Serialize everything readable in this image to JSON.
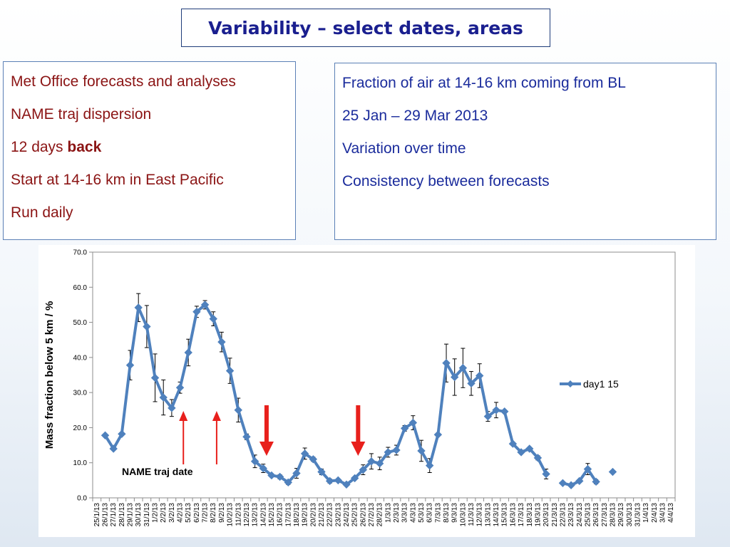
{
  "title": "Variability – select dates, areas",
  "left_panel": {
    "lines": [
      "Met Office forecasts and analyses",
      "NAME traj dispersion",
      "12 days ",
      "Start at 14-16 km in East Pacific",
      "Run daily"
    ],
    "bold_word": "back"
  },
  "right_panel": {
    "lines": [
      "Fraction of air at 14-16 km coming from BL",
      "25 Jan – 29 Mar 2013",
      "Variation over time",
      "Consistency between forecasts"
    ]
  },
  "colors": {
    "title": "#1a1f8f",
    "left_text": "#8b1414",
    "right_text": "#1b2c9c",
    "series": "#4f81bd",
    "thin_arrow": "#e8201c",
    "thick_arrow": "#e8201c"
  },
  "chart_data": {
    "type": "line",
    "ylabel": "Mass fraction below 5 km / %",
    "xlabel": "",
    "ylim": [
      0,
      70
    ],
    "yticks": [
      "0.0",
      "10.0",
      "20.0",
      "30.0",
      "40.0",
      "50.0",
      "60.0",
      "70.0"
    ],
    "categories": [
      "25/1/13",
      "26/1/13",
      "27/1/13",
      "28/1/13",
      "29/1/13",
      "30/1/13",
      "31/1/13",
      "1/2/13",
      "2/2/13",
      "3/2/13",
      "4/2/13",
      "5/2/13",
      "6/2/13",
      "7/2/13",
      "8/2/13",
      "9/2/13",
      "10/2/13",
      "11/2/13",
      "12/2/13",
      "13/2/13",
      "14/2/13",
      "15/2/13",
      "16/2/13",
      "17/2/13",
      "18/2/13",
      "19/2/13",
      "20/2/13",
      "21/2/13",
      "22/2/13",
      "23/2/13",
      "24/2/13",
      "25/2/13",
      "26/2/13",
      "27/2/13",
      "28/2/13",
      "1/3/13",
      "2/3/13",
      "3/3/13",
      "4/3/13",
      "5/3/13",
      "6/3/13",
      "7/3/13",
      "8/3/13",
      "9/3/13",
      "10/3/13",
      "11/3/13",
      "12/3/13",
      "13/3/13",
      "14/3/13",
      "15/3/13",
      "16/3/13",
      "17/3/13",
      "18/3/13",
      "19/3/13",
      "20/3/13",
      "21/3/13",
      "22/3/13",
      "23/3/13",
      "24/3/13",
      "25/3/13",
      "26/3/13",
      "27/3/13",
      "28/3/13",
      "29/3/13",
      "30/3/13",
      "31/3/13",
      "1/4/13",
      "2/4/13",
      "3/4/13",
      "4/4/13"
    ],
    "tick_labels": [
      "25/1/13",
      "26/1/13",
      "27/1/13",
      "28/1/13",
      "29/1/13",
      "30/1/13",
      "31/1/13",
      "1/2/13",
      "2/2/13",
      "3/2/13",
      "4/2/13",
      "5/2/13",
      "6/2/13",
      "7/2/13",
      "8/2/13",
      "9/2/13",
      "10/2/13",
      "11/2/13",
      "12/2/13",
      "13/2/13",
      "14/2/13",
      "15/2/13",
      "16/2/13",
      "17/2/13",
      "18/2/13",
      "19/2/13",
      "20/2/13",
      "21/2/13",
      "22/2/13",
      "23/2/13",
      "24/2/13",
      "25/2/13",
      "26/2/13",
      "27/2/13",
      "28/2/13",
      "1/3/13",
      "2/3/13",
      "3/3/13",
      "4/3/13",
      "5/3/13",
      "6/3/13",
      "7/3/13",
      "8/3/13",
      "9/3/13",
      "10/3/13",
      "11/3/13",
      "12/3/13",
      "13/3/13",
      "14/3/13",
      "15/3/13",
      "16/3/13",
      "17/3/13",
      "18/3/13",
      "19/3/13",
      "20/3/13",
      "21/3/13",
      "22/3/13",
      "23/3/13",
      "24/3/13",
      "25/3/13",
      "26/3/13",
      "27/3/13",
      "28/3/13",
      "29/3/13",
      "30/3/13",
      "31/3/13",
      "1/4/13",
      "2/4/13",
      "3/4/13",
      "4/4/13"
    ],
    "series": [
      {
        "name": "day1 15",
        "values": [
          null,
          17.8,
          14.0,
          18.2,
          37.8,
          54.2,
          48.8,
          34.2,
          28.6,
          25.6,
          31.4,
          41.4,
          53.0,
          55.0,
          51.0,
          44.4,
          36.2,
          25.0,
          17.4,
          10.4,
          8.4,
          6.4,
          6.0,
          4.4,
          7.0,
          12.6,
          11.0,
          7.4,
          4.8,
          5.0,
          3.8,
          5.6,
          8.0,
          10.4,
          9.8,
          13.0,
          13.6,
          19.8,
          21.4,
          13.4,
          9.2,
          18.0,
          38.4,
          34.4,
          37.0,
          32.6,
          34.8,
          23.2,
          25.0,
          24.6,
          15.4,
          13.0,
          14.0,
          11.4,
          6.8,
          null,
          4.2,
          3.6,
          4.8,
          8.2,
          4.6,
          null,
          7.4,
          null,
          null,
          null,
          null,
          null,
          null,
          null
        ],
        "err": [
          null,
          0,
          0,
          0,
          4.2,
          4.0,
          6.0,
          6.8,
          5.0,
          2.4,
          1.6,
          3.8,
          1.6,
          1.2,
          2.0,
          2.8,
          3.6,
          3.4,
          0.8,
          1.8,
          1.2,
          0.4,
          0.6,
          0.6,
          1.4,
          1.6,
          0.6,
          0.8,
          0.6,
          0.4,
          0.4,
          0.4,
          1.4,
          2.2,
          1.8,
          1.4,
          1.4,
          0.8,
          2.0,
          3.0,
          2.0,
          0.4,
          5.4,
          5.2,
          5.6,
          3.4,
          3.4,
          1.4,
          2.2,
          0.4,
          0.4,
          0.4,
          0.4,
          0.6,
          1.4,
          null,
          0.4,
          0.4,
          0.4,
          1.6,
          0.6,
          null,
          0,
          null,
          null,
          null,
          null,
          null,
          null,
          null
        ]
      }
    ],
    "legend": {
      "position": "right",
      "label": "day1 15"
    },
    "annotations": {
      "label": "NAME traj date",
      "thin_arrow_dates": [
        "4/2/13",
        "8/2/13"
      ],
      "thick_arrow_dates": [
        "14/2/13",
        "25/2/13"
      ]
    },
    "grid": false
  }
}
